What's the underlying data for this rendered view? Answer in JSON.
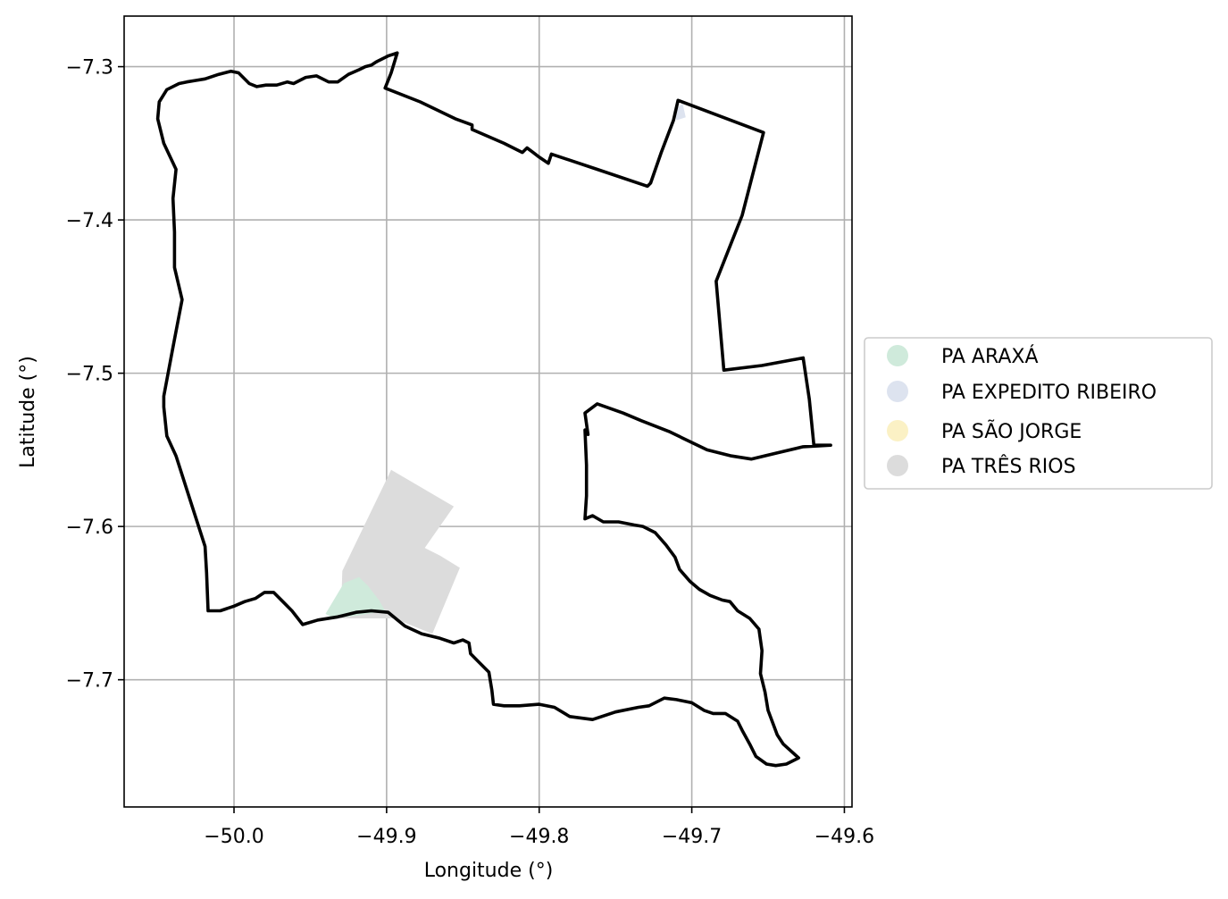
{
  "map": {
    "x_axis": {
      "label": "Longitude (°)",
      "range": [
        -50.072,
        -49.595
      ],
      "ticks": [
        {
          "value": -50.0,
          "label": "−50.0"
        },
        {
          "value": -49.9,
          "label": "−49.9"
        },
        {
          "value": -49.8,
          "label": "−49.8"
        },
        {
          "value": -49.7,
          "label": "−49.7"
        },
        {
          "value": -49.6,
          "label": "−49.6"
        }
      ]
    },
    "y_axis": {
      "label": "Latitude (°)",
      "range": [
        -7.783,
        -7.267
      ],
      "ticks": [
        {
          "value": -7.3,
          "label": "−7.3"
        },
        {
          "value": -7.4,
          "label": "−7.4"
        },
        {
          "value": -7.5,
          "label": "−7.5"
        },
        {
          "value": -7.6,
          "label": "−7.6"
        },
        {
          "value": -7.7,
          "label": "−7.7"
        }
      ]
    },
    "grid": true,
    "legend_position": "right",
    "legend": [
      {
        "label": "PA ARAXÁ",
        "color": "#cfeadb"
      },
      {
        "label": "PA EXPEDITO RIBEIRO",
        "color": "#dde3ef"
      },
      {
        "label": "PA SÃO JORGE",
        "color": "#fbf1c5"
      },
      {
        "label": "PA TRÊS RIOS",
        "color": "#dcdcdc"
      }
    ],
    "boundary_color": "#000000",
    "regions": [
      {
        "name": "PA TRÊS RIOS",
        "color": "#dcdcdc",
        "polygon": [
          [
            -49.929,
            -7.629
          ],
          [
            -49.897,
            -7.563
          ],
          [
            -49.856,
            -7.587
          ],
          [
            -49.875,
            -7.614
          ],
          [
            -49.865,
            -7.619
          ],
          [
            -49.852,
            -7.627
          ],
          [
            -49.87,
            -7.67
          ],
          [
            -49.895,
            -7.66
          ],
          [
            -49.93,
            -7.66
          ]
        ]
      },
      {
        "name": "PA ARAXÁ",
        "color": "#cfeadb",
        "polygon": [
          [
            -49.94,
            -7.657
          ],
          [
            -49.928,
            -7.637
          ],
          [
            -49.918,
            -7.633
          ],
          [
            -49.912,
            -7.639
          ],
          [
            -49.905,
            -7.648
          ],
          [
            -49.901,
            -7.655
          ],
          [
            -49.918,
            -7.658
          ],
          [
            -49.935,
            -7.66
          ]
        ]
      },
      {
        "name": "PA EXPEDITO RIBEIRO",
        "color": "#dde3ef",
        "polygon": [
          [
            -49.712,
            -7.329
          ],
          [
            -49.706,
            -7.324
          ],
          [
            -49.704,
            -7.333
          ],
          [
            -49.71,
            -7.335
          ]
        ]
      },
      {
        "name": "PA SÃO JORGE",
        "color": "#fbf1c5",
        "polygon": []
      }
    ],
    "boundary": [
      [
        -49.907,
        -7.297
      ],
      [
        -49.905,
        -7.296
      ],
      [
        -49.903,
        -7.295
      ],
      [
        -49.901,
        -7.294
      ],
      [
        -49.899,
        -7.293
      ],
      [
        -49.896,
        -7.292
      ],
      [
        -49.893,
        -7.291
      ],
      [
        -49.897,
        -7.304
      ],
      [
        -49.901,
        -7.314
      ],
      [
        -49.878,
        -7.323
      ],
      [
        -49.855,
        -7.334
      ],
      [
        -49.844,
        -7.338
      ],
      [
        -49.844,
        -7.341
      ],
      [
        -49.823,
        -7.35
      ],
      [
        -49.811,
        -7.356
      ],
      [
        -49.808,
        -7.353
      ],
      [
        -49.804,
        -7.356
      ],
      [
        -49.8,
        -7.359
      ],
      [
        -49.794,
        -7.363
      ],
      [
        -49.792,
        -7.357
      ],
      [
        -49.762,
        -7.367
      ],
      [
        -49.729,
        -7.378
      ],
      [
        -49.727,
        -7.376
      ],
      [
        -49.72,
        -7.356
      ],
      [
        -49.712,
        -7.335
      ],
      [
        -49.709,
        -7.322
      ],
      [
        -49.653,
        -7.343
      ],
      [
        -49.667,
        -7.397
      ],
      [
        -49.684,
        -7.44
      ],
      [
        -49.679,
        -7.498
      ],
      [
        -49.654,
        -7.495
      ],
      [
        -49.627,
        -7.49
      ],
      [
        -49.623,
        -7.517
      ],
      [
        -49.62,
        -7.547
      ],
      [
        -49.609,
        -7.547
      ],
      [
        -49.627,
        -7.548
      ],
      [
        -49.661,
        -7.556
      ],
      [
        -49.674,
        -7.554
      ],
      [
        -49.69,
        -7.55
      ],
      [
        -49.715,
        -7.538
      ],
      [
        -49.733,
        -7.531
      ],
      [
        -49.745,
        -7.526
      ],
      [
        -49.762,
        -7.52
      ],
      [
        -49.77,
        -7.526
      ],
      [
        -49.768,
        -7.54
      ],
      [
        -49.77,
        -7.537
      ],
      [
        -49.769,
        -7.56
      ],
      [
        -49.769,
        -7.58
      ],
      [
        -49.77,
        -7.595
      ],
      [
        -49.765,
        -7.593
      ],
      [
        -49.758,
        -7.597
      ],
      [
        -49.748,
        -7.597
      ],
      [
        -49.738,
        -7.599
      ],
      [
        -49.732,
        -7.6
      ],
      [
        -49.724,
        -7.604
      ],
      [
        -49.717,
        -7.612
      ],
      [
        -49.711,
        -7.62
      ],
      [
        -49.708,
        -7.628
      ],
      [
        -49.701,
        -7.636
      ],
      [
        -49.695,
        -7.641
      ],
      [
        -49.688,
        -7.645
      ],
      [
        -49.68,
        -7.648
      ],
      [
        -49.675,
        -7.649
      ],
      [
        -49.67,
        -7.655
      ],
      [
        -49.662,
        -7.66
      ],
      [
        -49.656,
        -7.667
      ],
      [
        -49.654,
        -7.681
      ],
      [
        -49.655,
        -7.696
      ],
      [
        -49.652,
        -7.708
      ],
      [
        -49.65,
        -7.72
      ],
      [
        -49.644,
        -7.736
      ],
      [
        -49.64,
        -7.742
      ],
      [
        -49.63,
        -7.751
      ],
      [
        -49.638,
        -7.755
      ],
      [
        -49.645,
        -7.756
      ],
      [
        -49.651,
        -7.755
      ],
      [
        -49.658,
        -7.75
      ],
      [
        -49.662,
        -7.742
      ],
      [
        -49.667,
        -7.733
      ],
      [
        -49.67,
        -7.727
      ],
      [
        -49.678,
        -7.722
      ],
      [
        -49.686,
        -7.722
      ],
      [
        -49.692,
        -7.72
      ],
      [
        -49.7,
        -7.715
      ],
      [
        -49.71,
        -7.713
      ],
      [
        -49.718,
        -7.712
      ],
      [
        -49.728,
        -7.717
      ],
      [
        -49.735,
        -7.718
      ],
      [
        -49.75,
        -7.721
      ],
      [
        -49.765,
        -7.726
      ],
      [
        -49.78,
        -7.724
      ],
      [
        -49.79,
        -7.718
      ],
      [
        -49.8,
        -7.716
      ],
      [
        -49.813,
        -7.717
      ],
      [
        -49.823,
        -7.717
      ],
      [
        -49.83,
        -7.716
      ],
      [
        -49.831,
        -7.707
      ],
      [
        -49.833,
        -7.695
      ],
      [
        -49.84,
        -7.688
      ],
      [
        -49.845,
        -7.683
      ],
      [
        -49.846,
        -7.676
      ],
      [
        -49.85,
        -7.674
      ],
      [
        -49.856,
        -7.676
      ],
      [
        -49.865,
        -7.673
      ],
      [
        -49.877,
        -7.67
      ],
      [
        -49.888,
        -7.665
      ],
      [
        -49.899,
        -7.656
      ],
      [
        -49.91,
        -7.655
      ],
      [
        -49.92,
        -7.656
      ],
      [
        -49.932,
        -7.659
      ],
      [
        -49.945,
        -7.661
      ],
      [
        -49.955,
        -7.664
      ],
      [
        -49.962,
        -7.655
      ],
      [
        -49.968,
        -7.649
      ],
      [
        -49.974,
        -7.643
      ],
      [
        -49.98,
        -7.643
      ],
      [
        -49.986,
        -7.647
      ],
      [
        -49.993,
        -7.649
      ],
      [
        -50.0,
        -7.652
      ],
      [
        -50.009,
        -7.655
      ],
      [
        -50.017,
        -7.655
      ],
      [
        -50.018,
        -7.63
      ],
      [
        -50.019,
        -7.613
      ],
      [
        -50.029,
        -7.582
      ],
      [
        -50.038,
        -7.554
      ],
      [
        -50.044,
        -7.541
      ],
      [
        -50.046,
        -7.522
      ],
      [
        -50.046,
        -7.515
      ],
      [
        -50.04,
        -7.483
      ],
      [
        -50.034,
        -7.452
      ],
      [
        -50.039,
        -7.431
      ],
      [
        -50.039,
        -7.408
      ],
      [
        -50.04,
        -7.386
      ],
      [
        -50.038,
        -7.367
      ],
      [
        -50.046,
        -7.35
      ],
      [
        -50.05,
        -7.334
      ],
      [
        -50.049,
        -7.323
      ],
      [
        -50.044,
        -7.315
      ],
      [
        -50.036,
        -7.311
      ],
      [
        -50.031,
        -7.31
      ],
      [
        -50.025,
        -7.309
      ],
      [
        -50.019,
        -7.308
      ],
      [
        -50.01,
        -7.305
      ],
      [
        -50.002,
        -7.303
      ],
      [
        -49.997,
        -7.304
      ],
      [
        -49.99,
        -7.311
      ],
      [
        -49.985,
        -7.313
      ],
      [
        -49.979,
        -7.312
      ],
      [
        -49.972,
        -7.312
      ],
      [
        -49.965,
        -7.31
      ],
      [
        -49.961,
        -7.311
      ],
      [
        -49.953,
        -7.307
      ],
      [
        -49.946,
        -7.306
      ],
      [
        -49.938,
        -7.31
      ],
      [
        -49.932,
        -7.31
      ],
      [
        -49.925,
        -7.305
      ],
      [
        -49.918,
        -7.302
      ],
      [
        -49.914,
        -7.3
      ],
      [
        -49.91,
        -7.299
      ],
      [
        -49.907,
        -7.297
      ]
    ]
  }
}
